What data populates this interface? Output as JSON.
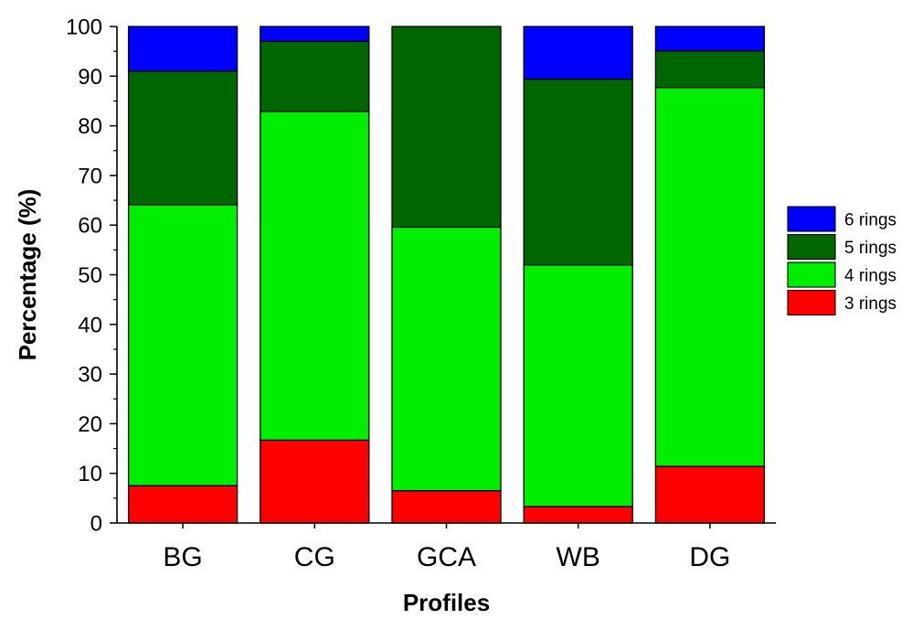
{
  "chart_data": {
    "type": "bar",
    "stacked": true,
    "title": "",
    "xlabel": "Profiles",
    "ylabel": "Percentage (%)",
    "ylim": [
      0,
      100
    ],
    "yticks": [
      0,
      10,
      20,
      30,
      40,
      50,
      60,
      70,
      80,
      90,
      100
    ],
    "grid": false,
    "legend_position": "right",
    "categories": [
      "BG",
      "CG",
      "GCA",
      "WB",
      "DG"
    ],
    "series": [
      {
        "name": "3 rings",
        "color": "#ff0000",
        "values": [
          7.5,
          16.7,
          6.5,
          3.3,
          11.4
        ]
      },
      {
        "name": "4 rings",
        "color": "#00ee00",
        "values": [
          56.6,
          66.2,
          53.1,
          48.7,
          76.3
        ]
      },
      {
        "name": "5 rings",
        "color": "#006600",
        "values": [
          26.9,
          14.1,
          40.4,
          37.4,
          7.4
        ]
      },
      {
        "name": "6 rings",
        "color": "#0000ff",
        "values": [
          9.0,
          3.0,
          0.0,
          10.6,
          4.9
        ]
      }
    ]
  }
}
